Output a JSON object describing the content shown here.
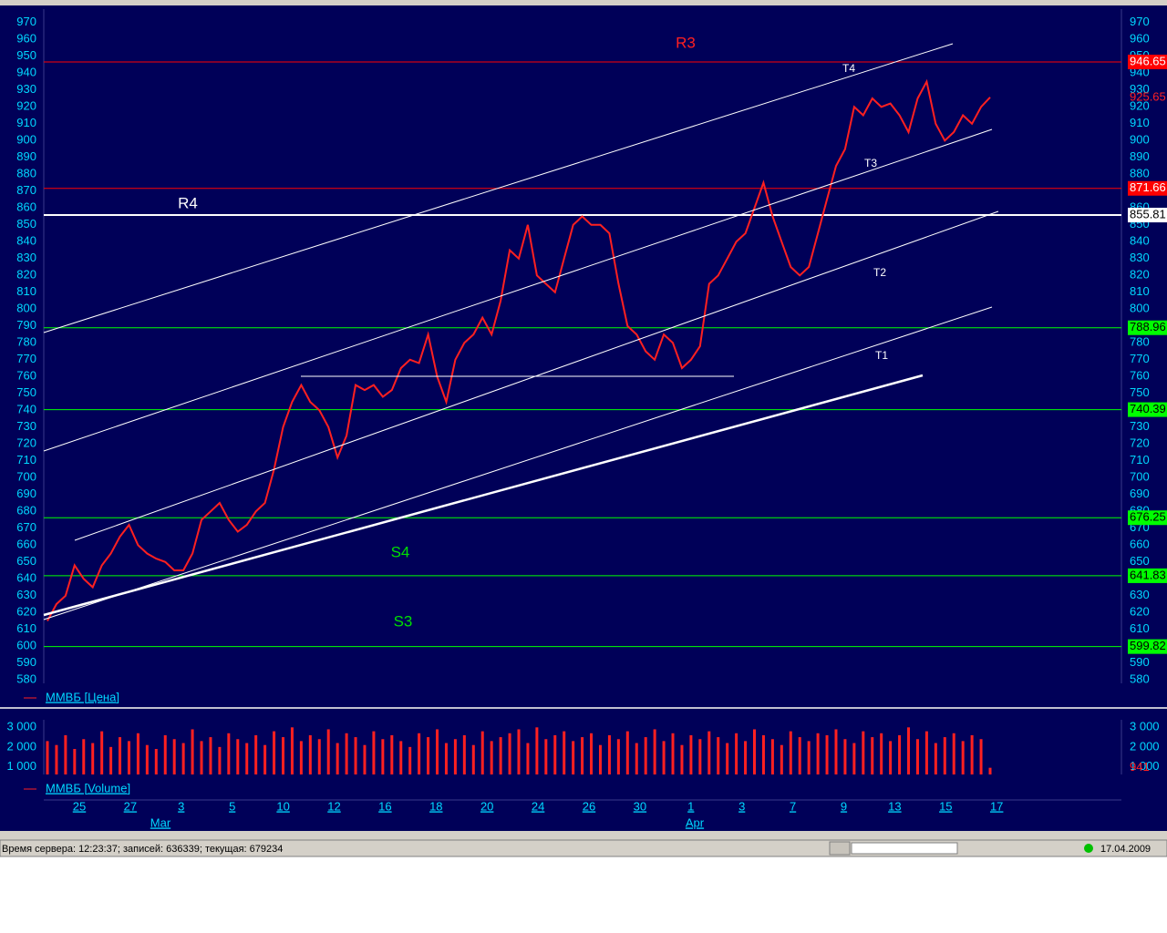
{
  "chart_data": [
    {
      "type": "line",
      "name": "ММВБ [Цена]",
      "color": "#ff2020",
      "values": [
        615,
        625,
        630,
        648,
        640,
        635,
        648,
        655,
        665,
        672,
        660,
        655,
        652,
        650,
        645,
        645,
        655,
        675,
        680,
        685,
        675,
        668,
        672,
        680,
        685,
        705,
        730,
        745,
        755,
        745,
        740,
        730,
        712,
        725,
        755,
        752,
        755,
        748,
        752,
        765,
        770,
        768,
        785,
        760,
        745,
        770,
        780,
        785,
        795,
        785,
        805,
        835,
        830,
        850,
        820,
        815,
        810,
        830,
        850,
        855,
        850,
        850,
        845,
        815,
        790,
        785,
        775,
        770,
        785,
        780,
        765,
        770,
        778,
        815,
        820,
        830,
        840,
        845,
        860,
        875,
        855,
        840,
        825,
        820,
        825,
        845,
        865,
        885,
        895,
        920,
        915,
        925,
        920,
        922,
        915,
        905,
        925,
        935,
        910,
        900,
        905,
        915,
        910,
        920,
        925.65
      ],
      "ylim": [
        578,
        978
      ],
      "yticks": [
        580,
        590,
        600,
        610,
        620,
        630,
        640,
        650,
        660,
        670,
        680,
        690,
        700,
        710,
        720,
        730,
        740,
        750,
        760,
        770,
        780,
        790,
        800,
        810,
        820,
        830,
        840,
        850,
        860,
        870,
        880,
        890,
        900,
        910,
        920,
        930,
        940,
        950,
        960,
        970
      ],
      "levels": [
        {
          "value": 946.65,
          "color": "#ff0000"
        },
        {
          "value": 871.66,
          "color": "#ff0000"
        },
        {
          "value": 855.81,
          "color": "#ffffff"
        },
        {
          "value": 788.96,
          "color": "#00ff00"
        },
        {
          "value": 740.39,
          "color": "#00ff00"
        },
        {
          "value": 676.25,
          "color": "#00ff00"
        },
        {
          "value": 641.83,
          "color": "#00ff00"
        },
        {
          "value": 599.82,
          "color": "#00ff00"
        }
      ],
      "annotations": [
        {
          "text": "R3",
          "color": "#ff2020"
        },
        {
          "text": "R4",
          "color": "#ffffff"
        },
        {
          "text": "S4",
          "color": "#00e000"
        },
        {
          "text": "S3",
          "color": "#00e000"
        },
        {
          "text": "T4",
          "color": "#ffffff"
        },
        {
          "text": "T3",
          "color": "#ffffff"
        },
        {
          "text": "T2",
          "color": "#ffffff"
        },
        {
          "text": "T1",
          "color": "#ffffff"
        }
      ]
    },
    {
      "type": "bar",
      "name": "ММВБ [Volume]",
      "color": "#ff2020",
      "values": [
        2300,
        2100,
        2600,
        1900,
        2400,
        2200,
        2800,
        2000,
        2500,
        2300,
        2700,
        2100,
        1900,
        2600,
        2400,
        2200,
        2900,
        2300,
        2500,
        2000,
        2700,
        2400,
        2200,
        2600,
        2100,
        2800,
        2500,
        3000,
        2300,
        2600,
        2400,
        2900,
        2200,
        2700,
        2500,
        2100,
        2800,
        2400,
        2600,
        2300,
        2000,
        2700,
        2500,
        2900,
        2200,
        2400,
        2600,
        2100,
        2800,
        2300,
        2500,
        2700,
        2900,
        2200,
        3000,
        2400,
        2600,
        2800,
        2300,
        2500,
        2700,
        2100,
        2600,
        2400,
        2800,
        2200,
        2500,
        2900,
        2300,
        2700,
        2100,
        2600,
        2400,
        2800,
        2500,
        2200,
        2700,
        2300,
        2900,
        2600,
        2400,
        2100,
        2800,
        2500,
        2300,
        2700,
        2600,
        2900,
        2400,
        2200,
        2800,
        2500,
        2700,
        2300,
        2600,
        3000,
        2400,
        2800,
        2200,
        2500,
        2700,
        2300,
        2600,
        2400,
        941
      ],
      "ylim": [
        600,
        3200
      ],
      "yticks": [
        {
          "value": 1000,
          "label": "1 000"
        },
        {
          "value": 2000,
          "label": "2 000"
        },
        {
          "value": 3000,
          "label": "3 000"
        }
      ]
    }
  ],
  "x_labels": [
    "25",
    "27",
    "3",
    "5",
    "10",
    "12",
    "16",
    "18",
    "20",
    "24",
    "26",
    "30",
    "1",
    "3",
    "7",
    "9",
    "13",
    "15",
    "17"
  ],
  "months": [
    "Mar",
    "Apr"
  ],
  "status_bar": {
    "text": "Время сервера: 12:23:37; записей: 636339; текущая: 679234",
    "date": "17.04.2009"
  }
}
